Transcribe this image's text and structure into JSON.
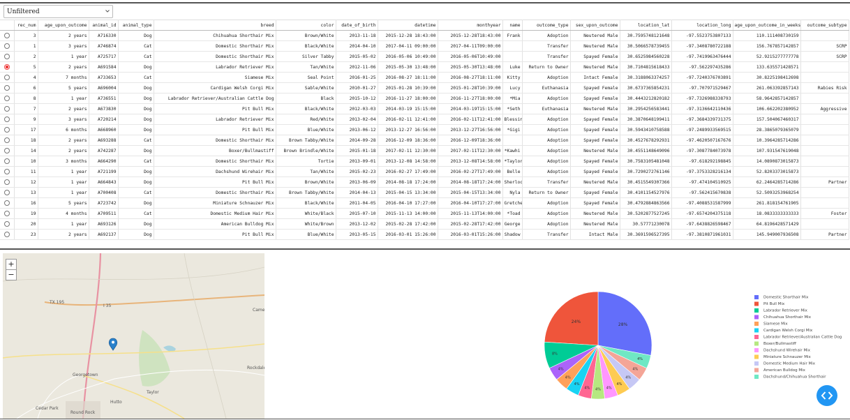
{
  "filter": {
    "selected": "Unfiltered"
  },
  "table": {
    "columns": [
      "rec_num",
      "age_upon_outcome",
      "animal_id",
      "animal_type",
      "breed",
      "color",
      "date_of_birth",
      "datetime",
      "monthyear",
      "name",
      "outcome_type",
      "sex_upon_outcome",
      "location_lat",
      "location_long",
      "age_upon_outcome_in_weeks",
      "outcome_subtype"
    ],
    "selected_row": 3,
    "rows": [
      [
        3,
        "2 years",
        "A716330",
        "Dog",
        "Chihuahua Shorthair Mix",
        "Brown/White",
        "2013-11-18",
        "2015-12-28 18:43:00",
        "2015-12-28T18:43:00",
        "Frank",
        "Adoption",
        "Neutered Male",
        30.7595748121648,
        -97.5523753807133,
        110.111408730159,
        null
      ],
      [
        1,
        "3 years",
        "A746874",
        "Cat",
        "Domestic Shorthair Mix",
        "Black/White",
        "2014-04-10",
        "2017-04-11 09:00:00",
        "2017-04-11T09:00:00",
        null,
        "Transfer",
        "Neutered Male",
        30.5066578739455,
        -97.3408780722188,
        156.767857142857,
        "SCRP"
      ],
      [
        2,
        "1 year",
        "A725717",
        "Cat",
        "Domestic Shorthair Mix",
        "Silver Tabby",
        "2015-05-02",
        "2016-05-06 10:49:00",
        "2016-05-06T10:49:00",
        null,
        "Transfer",
        "Spayed Female",
        30.6525984560228,
        -97.7419963476444,
        52.9215277777778,
        "SCRP"
      ],
      [
        5,
        "2 years",
        "A691584",
        "Dog",
        "Labrador Retriever Mix",
        "Tan/White",
        "2012-11-06",
        "2015-05-30 13:48:00",
        "2015-05-30T13:48:00",
        "Luke",
        "Return to Owner",
        "Neutered Male",
        30.7104815618433,
        -97.562297435286,
        133.635571428571,
        null
      ],
      [
        4,
        "7 months",
        "A733653",
        "Cat",
        "Siamese Mix",
        "Seal Point",
        "2016-01-25",
        "2016-08-27 18:11:00",
        "2016-08-27T18:11:00",
        "Kitty",
        "Adoption",
        "Intact Female",
        30.3188063374257,
        -97.7240376703891,
        30.8225198412698,
        null
      ],
      [
        6,
        "5 years",
        "A696004",
        "Dog",
        "Cardigan Welsh Corgi Mix",
        "Sable/White",
        "2010-01-27",
        "2015-01-28 10:39:00",
        "2015-01-28T10:39:00",
        "Lucy",
        "Euthanasia",
        "Spayed Female",
        30.6737365854231,
        -97.707971529467,
        261.063392857143,
        "Rabies Risk"
      ],
      [
        8,
        "1 year",
        "A736551",
        "Dog",
        "Labrador Retriever/Australian Cattle Dog",
        "Black",
        "2015-10-12",
        "2016-11-27 18:00:00",
        "2016-11-27T18:00:00",
        "*Mia",
        "Adoption",
        "Spayed Female",
        30.4443212820182,
        -97.7326988338793,
        58.9642857142857,
        null
      ],
      [
        7,
        "2 years",
        "A673830",
        "Dog",
        "Pit Bull Mix",
        "Black/White",
        "2012-03-03",
        "2014-03-19 15:15:00",
        "2014-03-19T15:15:00",
        "*Seth",
        "Euthanasia",
        "Neutered Male",
        30.2954256583441,
        -97.3136642110436,
        106.662202380952,
        "Aggressive"
      ],
      [
        9,
        "3 years",
        "A720214",
        "Dog",
        "Labrador Retriever Mix",
        "Red/White",
        "2013-02-04",
        "2016-02-11 12:41:00",
        "2016-02-11T12:41:00",
        "Blessing",
        "Adoption",
        "Spayed Female",
        30.3870648199411,
        -97.3684339731375,
        157.504067460317,
        null
      ],
      [
        17,
        "6 months",
        "A668960",
        "Dog",
        "Pit Bull Mix",
        "Blue/White",
        "2013-06-12",
        "2013-12-27 16:56:00",
        "2013-12-27T16:56:00",
        "*Gigi",
        "Adoption",
        "Spayed Female",
        30.5943410758588,
        -97.2489933569515,
        28.3865079365079,
        null
      ],
      [
        18,
        "2 years",
        "A693288",
        "Cat",
        "Domestic Shorthair Mix",
        "Brown Tabby/White",
        "2014-09-28",
        "2016-12-09 18:36:00",
        "2016-12-09T18:36:00",
        null,
        "Adoption",
        "Spayed Female",
        30.4527678292931,
        -97.4620507167676,
        10.3964285714286,
        null
      ],
      [
        14,
        "2 years",
        "A742287",
        "Dog",
        "Boxer/Bullmastiff",
        "Brown Brindle/White",
        "2015-01-18",
        "2017-02-11 12:30:00",
        "2017-02-11T12:30:00",
        "*Kawhi",
        "Adoption",
        "Neutered Male",
        30.4551148649096,
        -97.3087784073978,
        107.931547619048,
        null
      ],
      [
        10,
        "3 months",
        "A664290",
        "Cat",
        "Domestic Shorthair Mix",
        "Tortie",
        "2013-09-01",
        "2013-12-08 14:58:00",
        "2013-12-08T14:58:00",
        "*Taylor",
        "Adoption",
        "Spayed Female",
        30.7583105481048,
        -97.618292198845,
        14.0890873015873,
        null
      ],
      [
        11,
        "1 year",
        "A721199",
        "Dog",
        "Dachshund Wirehair Mix",
        "Tan/White",
        "2015-02-23",
        "2016-02-27 17:49:00",
        "2016-02-27T17:49:00",
        "Belle",
        "Adoption",
        "Spayed Female",
        30.7290272761146,
        -97.3753328216134,
        52.8203373015873,
        null
      ],
      [
        12,
        "1 year",
        "A664843",
        "Dog",
        "Pit Bull Mix",
        "Brown/White",
        "2013-06-09",
        "2014-08-18 17:24:00",
        "2014-08-18T17:24:00",
        "Sherlock",
        "Transfer",
        "Neutered Male",
        30.4515549307366,
        -97.474104510925,
        62.2464285714286,
        "Partner"
      ],
      [
        13,
        "1 year",
        "A700408",
        "Cat",
        "Domestic Shorthair Mix",
        "Brown Tabby/White",
        "2014-04-13",
        "2015-04-15 13:34:00",
        "2015-04-15T13:34:00",
        "Nyla",
        "Return to Owner",
        "Spayed Female",
        30.4101154527976,
        -97.562415670838,
        52.5093253968254,
        null
      ],
      [
        16,
        "5 years",
        "A723742",
        "Dog",
        "Miniature Schnauzer Mix",
        "Black/White",
        "2011-04-05",
        "2016-04-10 17:27:00",
        "2016-04-10T17:27:00",
        "Gretchen",
        "Adoption",
        "Spayed Female",
        30.4792884863566,
        -97.4088531587999,
        261.818154761905,
        null
      ],
      [
        19,
        "4 months",
        "A709511",
        "Cat",
        "Domestic Medium Hair Mix",
        "White/Black",
        "2015-07-10",
        "2015-11-13 14:00:00",
        "2015-11-13T14:00:00",
        "*Toad",
        "Adoption",
        "Neutered Male",
        30.5202877527245,
        -97.6574204375118,
        18.0833333333333,
        "Foster"
      ],
      [
        20,
        "1 year",
        "A693126",
        "Dog",
        "American Bulldog Mix",
        "White/Brown",
        "2013-12-02",
        "2015-02-28 17:42:00",
        "2015-02-28T17:42:00",
        "George",
        "Adoption",
        "Neutered Male",
        30.57771230078,
        -97.6438826598467,
        64.8196428571429,
        null
      ],
      [
        23,
        "2 years",
        "A692137",
        "Dog",
        "Pit Bull Mix",
        "Blue/White",
        "2013-05-15",
        "2016-03-01 15:26:00",
        "2016-03-01T15:26:00",
        "Shadow",
        "Transfer",
        "Intact Male",
        30.3691596527395,
        -97.3810871961031,
        145.949007936508,
        "Partner"
      ]
    ]
  },
  "map": {
    "zoom_in": "+",
    "zoom_out": "−",
    "labels": [
      "TX 195",
      "I 35",
      "Cameron",
      "Georgetown",
      "Round Rock",
      "Cedar Park",
      "Hutto",
      "Taylor",
      "Rockdale"
    ]
  },
  "chart_data": {
    "type": "pie",
    "categories": [
      "Domestic Shorthair Mix",
      "Pit Bull Mix",
      "Labrador Retriever Mix",
      "Chihuahua Shorthair Mix",
      "Siamese Mix",
      "Cardigan Welsh Corgi Mix",
      "Labrador Retriever/Australian Cattle Dog",
      "Boxer/Bullmastiff",
      "Dachshund Wirehair Mix",
      "Miniature Schnauzer Mix",
      "Domestic Medium Hair Mix",
      "American Bulldog Mix",
      "Dachshund/Chihuahua Shorthair"
    ],
    "values": [
      28,
      24,
      8,
      4,
      4,
      4,
      4,
      4,
      4,
      4,
      4,
      4,
      4
    ],
    "value_labels": [
      "28%",
      "24%",
      "8%",
      "4%",
      "4%",
      "4%",
      "4%",
      "4%",
      "4%",
      "4%",
      "4%",
      "4%",
      "4%"
    ],
    "colors": [
      "#636efa",
      "#ef553b",
      "#00cc96",
      "#ab63fa",
      "#ffa15a",
      "#19d3f3",
      "#ff6692",
      "#b6e880",
      "#ff97ff",
      "#fecb52",
      "#c6c8f5",
      "#f4a597",
      "#6fe8c4"
    ],
    "legend": "right"
  }
}
